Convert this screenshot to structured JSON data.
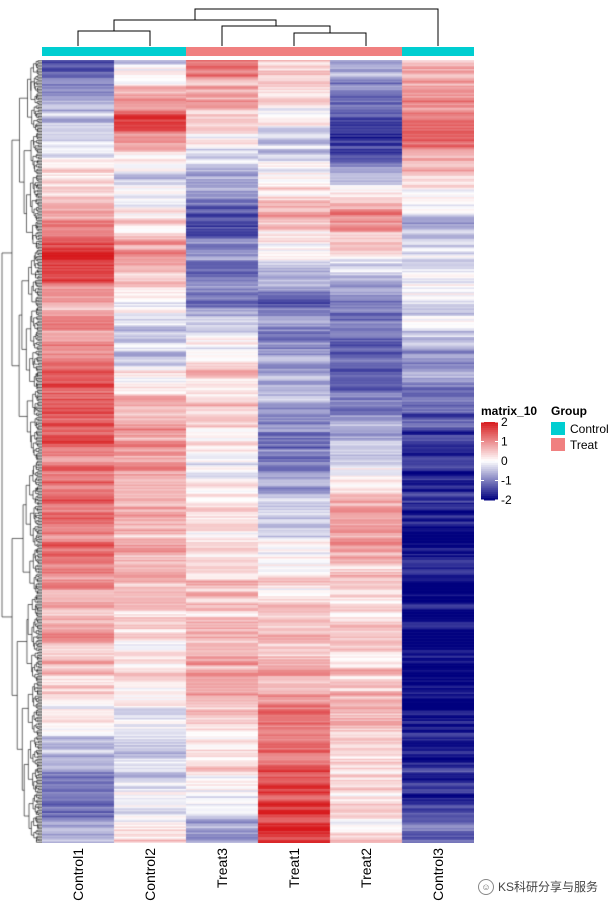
{
  "chart_data": {
    "type": "heatmap",
    "title": "",
    "columns": [
      "Control1",
      "Control2",
      "Treat3",
      "Treat1",
      "Treat2",
      "Control3"
    ],
    "column_groups": [
      "Control",
      "Control",
      "Treat",
      "Treat",
      "Treat",
      "Control"
    ],
    "column_dendrogram": {
      "merges": [
        {
          "left": "Control1",
          "right": "Control2"
        },
        {
          "left": "Treat1",
          "right": "Treat2"
        },
        {
          "left": "Treat3",
          "right": "Treat1+Treat2"
        },
        {
          "left": "Control1+Control2",
          "right": "Treat3+Treat1+Treat2"
        },
        {
          "left": "Control1+Control2+Treat3+Treat1+Treat2",
          "right": "Control3"
        }
      ]
    },
    "row_dendrogram": true,
    "color_scale": {
      "title": "matrix_10",
      "range": [
        -2,
        2
      ],
      "ticks": [
        2,
        1,
        0,
        -1,
        -2
      ],
      "tick_labels": [
        "2",
        "1",
        "0",
        "-1",
        "-2"
      ],
      "low_color": "#00007F",
      "mid_color": "#FFFFFF",
      "high_color": "#D7191C"
    },
    "group_legend": {
      "title": "Group",
      "entries": [
        {
          "label": "Control",
          "color": "#00CED1"
        },
        {
          "label": "Treat",
          "color": "#F08080"
        }
      ]
    },
    "column_profiles": {
      "Control1": [
        [
          0.0,
          -1.4
        ],
        [
          0.1,
          -0.2
        ],
        [
          0.18,
          0.3
        ],
        [
          0.25,
          1.9
        ],
        [
          0.32,
          0.6
        ],
        [
          0.4,
          1.5
        ],
        [
          0.55,
          1.3
        ],
        [
          0.7,
          0.9
        ],
        [
          0.85,
          0.0
        ],
        [
          0.93,
          -1.2
        ],
        [
          1.0,
          -0.6
        ]
      ],
      "Control2": [
        [
          0.0,
          -0.3
        ],
        [
          0.08,
          1.6
        ],
        [
          0.15,
          -0.5
        ],
        [
          0.25,
          1.0
        ],
        [
          0.35,
          -0.6
        ],
        [
          0.45,
          0.8
        ],
        [
          0.6,
          0.7
        ],
        [
          0.75,
          0.3
        ],
        [
          0.9,
          -0.4
        ],
        [
          1.0,
          0.4
        ]
      ],
      "Treat3": [
        [
          0.0,
          1.2
        ],
        [
          0.1,
          0.1
        ],
        [
          0.2,
          -1.3
        ],
        [
          0.3,
          -1.0
        ],
        [
          0.4,
          0.6
        ],
        [
          0.5,
          -0.1
        ],
        [
          0.65,
          0.4
        ],
        [
          0.75,
          0.8
        ],
        [
          0.9,
          0.3
        ],
        [
          1.0,
          -0.8
        ]
      ],
      "Treat1": [
        [
          0.0,
          0.6
        ],
        [
          0.1,
          -0.4
        ],
        [
          0.2,
          0.6
        ],
        [
          0.3,
          -1.0
        ],
        [
          0.4,
          -0.7
        ],
        [
          0.5,
          -1.1
        ],
        [
          0.6,
          -0.3
        ],
        [
          0.75,
          0.6
        ],
        [
          0.9,
          1.3
        ],
        [
          1.0,
          1.8
        ]
      ],
      "Treat2": [
        [
          0.0,
          -0.6
        ],
        [
          0.1,
          -1.8
        ],
        [
          0.2,
          1.0
        ],
        [
          0.3,
          -1.0
        ],
        [
          0.4,
          -1.4
        ],
        [
          0.5,
          -0.3
        ],
        [
          0.6,
          0.9
        ],
        [
          0.7,
          0.3
        ],
        [
          0.85,
          0.6
        ],
        [
          1.0,
          0.2
        ]
      ],
      "Control3": [
        [
          0.0,
          0.4
        ],
        [
          0.1,
          1.5
        ],
        [
          0.2,
          -0.6
        ],
        [
          0.3,
          0.0
        ],
        [
          0.4,
          -0.9
        ],
        [
          0.5,
          -1.6
        ],
        [
          0.6,
          -1.9
        ],
        [
          0.8,
          -2.0
        ],
        [
          0.95,
          -1.6
        ],
        [
          1.0,
          -1.0
        ]
      ]
    }
  },
  "watermark": {
    "text": "KS科研分享与服务"
  }
}
